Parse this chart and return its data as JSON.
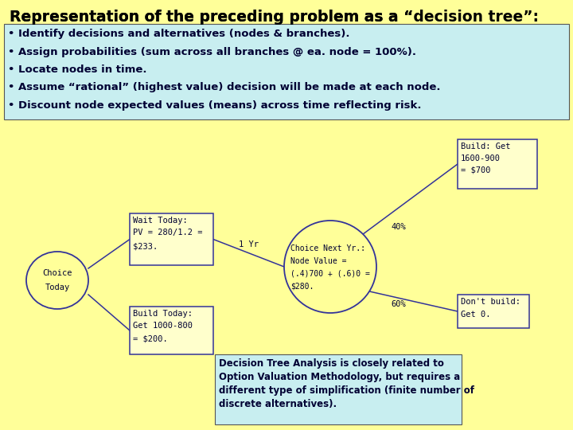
{
  "bg_color": "#ffff99",
  "title_part1": "Representation of the preceding problem as a “",
  "title_italic": "decision tree",
  "title_part2": "”:",
  "title_fontsize": 13.5,
  "bullet_box_color": "#c8eef0",
  "bullets": [
    "• Identify decisions and alternatives (nodes & branches).",
    "• Assign probabilities (sum across all branches @ ea. node = 100%).",
    "• Locate nodes in time.",
    "• Assume “rational” (highest value) decision will be made at each node.",
    "• Discount node expected values (means) across time reflecting risk."
  ],
  "bottom_box_color": "#c8eef0",
  "bottom_text": "Decision Tree Analysis is closely related to\nOption Valuation Methodology, but requires a\ndifferent type of simplification (finite number of\ndiscrete alternatives).",
  "box_facecolor": "#ffffcc",
  "box_edgecolor": "#333399",
  "line_color": "#333399",
  "text_color": "#000033",
  "node_edge_color": "#333399",
  "node_face_color": "#ffff99",
  "label_fontsize": 7.5,
  "bullet_fontsize": 9.5
}
